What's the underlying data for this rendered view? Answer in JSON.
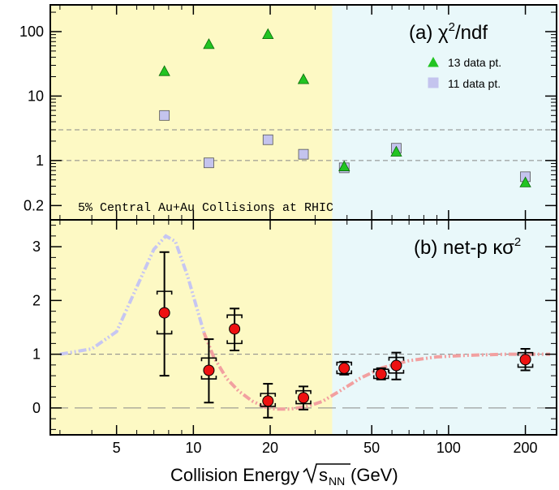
{
  "colors": {
    "yellow_region": "#fdf9c4",
    "cyan_region": "#e9f8fa",
    "triangle": "#22c422",
    "square": "#c4c4ee",
    "marker": "#ee1111",
    "model_lowE": "#c6c6f2",
    "model_highE": "#f2a0a0"
  },
  "chart_data": [
    {
      "id": "a",
      "type": "scatter",
      "title": "(a) χ²/ndf",
      "title_prefix": "(a) χ",
      "title_sup": "2",
      "title_suffix": "/ndf",
      "yscale": "log",
      "ylim": [
        0.12,
        260
      ],
      "yticks": [
        {
          "value": 0.2,
          "label": "0.2"
        },
        {
          "value": 1,
          "label": "1"
        },
        {
          "value": 10,
          "label": "10"
        },
        {
          "value": 100,
          "label": "100"
        }
      ],
      "reference_lines": [
        1,
        3
      ],
      "annotation": "5% Central Au+Au Collisions at RHIC",
      "legend_position": "top-right",
      "series": [
        {
          "name": "13 data pt.",
          "marker": "triangle",
          "points": [
            {
              "x": 7.7,
              "y": 24
            },
            {
              "x": 11.5,
              "y": 63
            },
            {
              "x": 19.6,
              "y": 90
            },
            {
              "x": 27,
              "y": 18
            },
            {
              "x": 39,
              "y": 0.8
            },
            {
              "x": 62.4,
              "y": 1.35
            },
            {
              "x": 200,
              "y": 0.45
            }
          ]
        },
        {
          "name": "11 data pt.",
          "marker": "square",
          "points": [
            {
              "x": 7.7,
              "y": 5
            },
            {
              "x": 11.5,
              "y": 0.92
            },
            {
              "x": 19.6,
              "y": 2.1
            },
            {
              "x": 27,
              "y": 1.25
            },
            {
              "x": 39,
              "y": 0.77
            },
            {
              "x": 62.4,
              "y": 1.55
            },
            {
              "x": 200,
              "y": 0.56
            }
          ]
        }
      ]
    },
    {
      "id": "b",
      "type": "scatter",
      "title": "(b) net-p κσ²",
      "title_prefix": "(b) net-p κσ",
      "title_sup": "2",
      "ylim": [
        -0.5,
        3.5
      ],
      "yticks": [
        {
          "value": 0,
          "label": "0"
        },
        {
          "value": 1,
          "label": "1"
        },
        {
          "value": 2,
          "label": "2"
        },
        {
          "value": 3,
          "label": "3"
        }
      ],
      "reference_lines": [
        0,
        1
      ],
      "points": [
        {
          "x": 7.7,
          "y": 1.77,
          "stat": [
            0.6,
            2.9
          ],
          "sys": [
            1.38,
            2.17
          ]
        },
        {
          "x": 11.5,
          "y": 0.7,
          "stat": [
            0.1,
            1.28
          ],
          "sys": [
            0.54,
            0.93
          ]
        },
        {
          "x": 14.5,
          "y": 1.47,
          "stat": [
            1.07,
            1.85
          ],
          "sys": [
            1.2,
            1.73
          ]
        },
        {
          "x": 19.6,
          "y": 0.13,
          "stat": [
            -0.18,
            0.45
          ],
          "sys": [
            0.03,
            0.27
          ]
        },
        {
          "x": 27,
          "y": 0.19,
          "stat": [
            -0.03,
            0.4
          ],
          "sys": [
            0.08,
            0.32
          ]
        },
        {
          "x": 39,
          "y": 0.74,
          "stat": [
            0.62,
            0.86
          ],
          "sys": [
            0.64,
            0.85
          ]
        },
        {
          "x": 54.4,
          "y": 0.63,
          "stat": [
            0.53,
            0.74
          ],
          "sys": [
            0.55,
            0.72
          ]
        },
        {
          "x": 62.4,
          "y": 0.79,
          "stat": [
            0.53,
            1.03
          ],
          "sys": [
            0.65,
            0.94
          ]
        },
        {
          "x": 200,
          "y": 0.9,
          "stat": [
            0.7,
            1.1
          ],
          "sys": [
            0.76,
            1.03
          ]
        }
      ],
      "model_curve": [
        [
          3,
          1.0
        ],
        [
          4,
          1.1
        ],
        [
          5,
          1.42
        ],
        [
          6,
          2.25
        ],
        [
          7,
          2.95
        ],
        [
          7.8,
          3.2
        ],
        [
          8.5,
          3.1
        ],
        [
          9.5,
          2.45
        ],
        [
          11,
          1.4
        ],
        [
          12,
          0.95
        ],
        [
          13.5,
          0.55
        ],
        [
          15,
          0.32
        ],
        [
          17,
          0.13
        ],
        [
          19,
          0.02
        ],
        [
          21,
          -0.02
        ],
        [
          24,
          -0.02
        ],
        [
          28,
          0.03
        ],
        [
          32,
          0.12
        ],
        [
          37,
          0.3
        ],
        [
          45,
          0.55
        ],
        [
          55,
          0.75
        ],
        [
          70,
          0.88
        ],
        [
          90,
          0.95
        ],
        [
          120,
          0.98
        ],
        [
          170,
          1.0
        ],
        [
          250,
          1.0
        ]
      ],
      "model_curve_split_x": 11.5
    }
  ],
  "x_axis": {
    "scale": "log",
    "xlim": [
      2.75,
      265
    ],
    "region_split_x": 35,
    "ticks": [
      {
        "value": 5,
        "label": "5"
      },
      {
        "value": 10,
        "label": "10"
      },
      {
        "value": 20,
        "label": "20"
      },
      {
        "value": 50,
        "label": "50"
      },
      {
        "value": 100,
        "label": "100"
      },
      {
        "value": 200,
        "label": "200"
      }
    ],
    "label_prefix": "Collision Energy ",
    "label_sqrt_body": "s",
    "label_sub": "NN",
    "label_suffix": " (GeV)"
  }
}
